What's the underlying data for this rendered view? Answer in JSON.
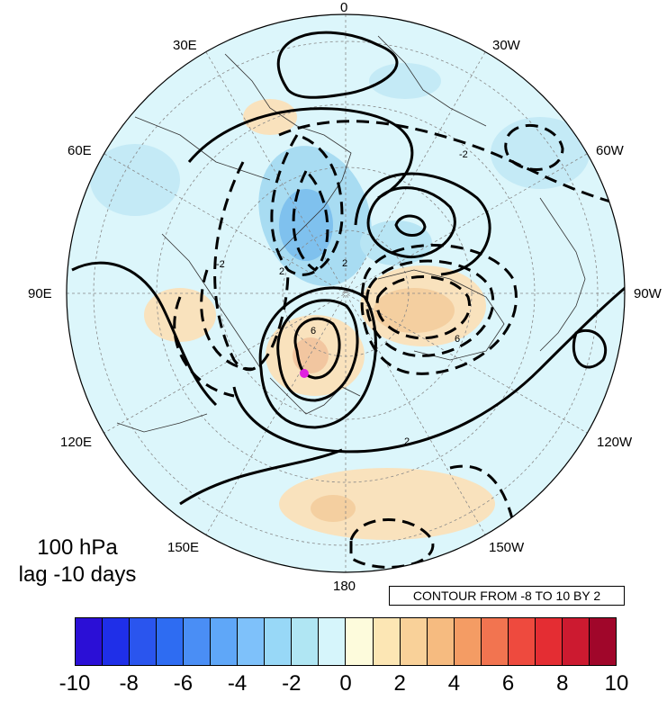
{
  "map": {
    "projection": "north-polar-stereographic",
    "longitude_labels": [
      "0",
      "30W",
      "60W",
      "90W",
      "120W",
      "150W",
      "180",
      "150E",
      "120E",
      "90E",
      "60E",
      "30E"
    ],
    "contour_dashed_negative": true,
    "contour_label_values": [
      "-2",
      "2",
      "2",
      "6",
      "6",
      "-2",
      "2"
    ],
    "marker": {
      "name": "magenta-dot",
      "color": "#e020e0"
    }
  },
  "caption": {
    "line1": "100 hPa",
    "line2": "lag -10 days"
  },
  "contour_info": "CONTOUR FROM -8 TO 10 BY 2",
  "colorbar": {
    "colors": [
      "#2b0fd6",
      "#1f2fe8",
      "#2a55ee",
      "#2e6cf2",
      "#4a8ef5",
      "#5fa7f8",
      "#7ec1fa",
      "#98d8f7",
      "#b0e6f3",
      "#d6f5fb",
      "#fdfbdc",
      "#fce6b4",
      "#f9d199",
      "#f6bb80",
      "#f49c64",
      "#f27450",
      "#ee4a3e",
      "#e42d33",
      "#cc1a30",
      "#a0062a"
    ],
    "tick_labels": [
      "-10",
      "-8",
      "-6",
      "-4",
      "-2",
      "0",
      "2",
      "4",
      "6",
      "8",
      "10"
    ]
  }
}
